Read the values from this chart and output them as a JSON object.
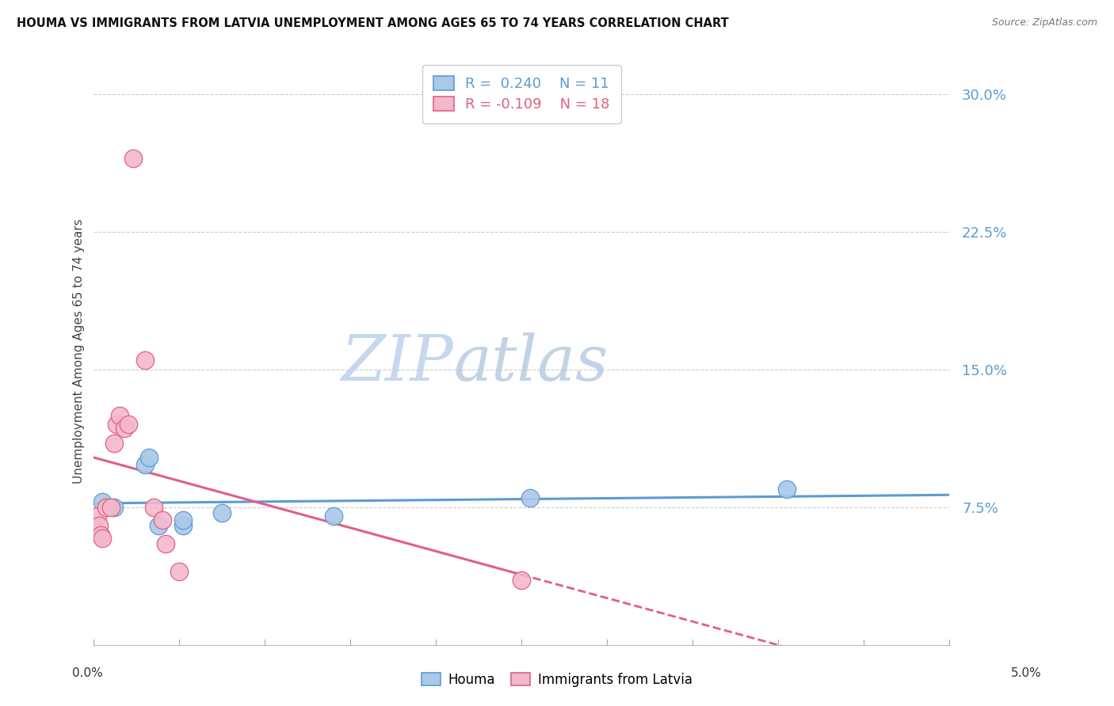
{
  "title": "HOUMA VS IMMIGRANTS FROM LATVIA UNEMPLOYMENT AMONG AGES 65 TO 74 YEARS CORRELATION CHART",
  "source": "Source: ZipAtlas.com",
  "ylabel": "Unemployment Among Ages 65 to 74 years",
  "xlim": [
    0.0,
    5.0
  ],
  "ylim": [
    0.0,
    32.0
  ],
  "yticks": [
    0.0,
    7.5,
    15.0,
    22.5,
    30.0
  ],
  "ytick_labels": [
    "",
    "7.5%",
    "15.0%",
    "22.5%",
    "30.0%"
  ],
  "houma_color": "#aac8e8",
  "houma_edge_color": "#5b9bd5",
  "latvia_color": "#f4b8cc",
  "latvia_edge_color": "#e06080",
  "houma_R": 0.24,
  "houma_N": 11,
  "latvia_R": -0.109,
  "latvia_N": 18,
  "houma_points": [
    [
      0.05,
      7.8
    ],
    [
      0.12,
      7.5
    ],
    [
      0.3,
      9.8
    ],
    [
      0.32,
      10.2
    ],
    [
      0.38,
      6.5
    ],
    [
      0.52,
      6.5
    ],
    [
      0.52,
      6.8
    ],
    [
      0.75,
      7.2
    ],
    [
      1.4,
      7.0
    ],
    [
      2.55,
      8.0
    ],
    [
      4.05,
      8.5
    ]
  ],
  "latvia_points": [
    [
      0.02,
      7.0
    ],
    [
      0.03,
      6.5
    ],
    [
      0.04,
      6.0
    ],
    [
      0.05,
      5.8
    ],
    [
      0.07,
      7.5
    ],
    [
      0.1,
      7.5
    ],
    [
      0.12,
      11.0
    ],
    [
      0.13,
      12.0
    ],
    [
      0.15,
      12.5
    ],
    [
      0.18,
      11.8
    ],
    [
      0.2,
      12.0
    ],
    [
      0.23,
      26.5
    ],
    [
      0.3,
      15.5
    ],
    [
      0.35,
      7.5
    ],
    [
      0.4,
      6.8
    ],
    [
      0.42,
      5.5
    ],
    [
      0.5,
      4.0
    ],
    [
      2.5,
      3.5
    ]
  ],
  "houma_line_color": "#5b9bd5",
  "latvia_line_color": "#e06080",
  "watermark_zip": "ZIP",
  "watermark_atlas": "atlas",
  "watermark_color_zip": "#c5d8ee",
  "watermark_color_atlas": "#b8cce0",
  "background_color": "#ffffff",
  "grid_color": "#cccccc"
}
